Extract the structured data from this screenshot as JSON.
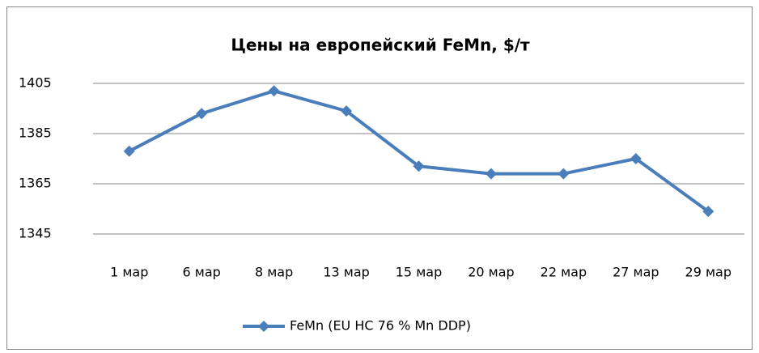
{
  "chart_data": {
    "type": "line",
    "title": "Цены на европейский FeMn, $/т",
    "categories": [
      "1 мар",
      "6 мар",
      "8 мар",
      "13 мар",
      "15 мар",
      "20 мар",
      "22 мар",
      "27 мар",
      "29 мар"
    ],
    "series": [
      {
        "name": "FeMn (EU HC 76 % Mn DDP)",
        "color": "#4a7ebb",
        "values": [
          1378,
          1393,
          1402,
          1394,
          1372,
          1369,
          1369,
          1375,
          1354
        ]
      }
    ],
    "ylim": [
      1345,
      1405
    ],
    "yticks": [
      1345,
      1365,
      1385,
      1405
    ],
    "grid": true,
    "legend": "bottom"
  }
}
